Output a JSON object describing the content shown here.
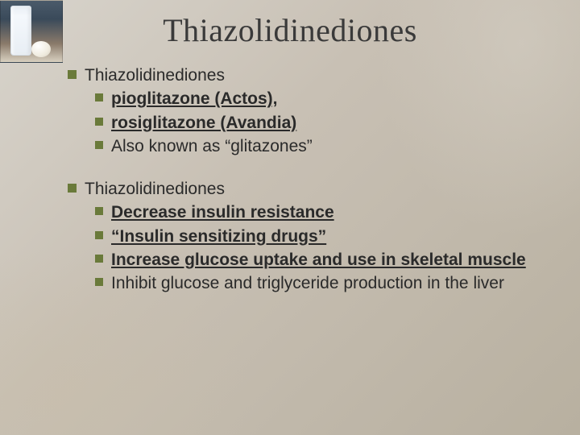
{
  "title": "Thiazolidinediones",
  "bullet_color": "#6a7a3a",
  "text_color": "#2a2a2a",
  "title_color": "#3a3a3a",
  "title_font_family": "Georgia",
  "body_font_family": "Verdana",
  "title_fontsize": 40,
  "body_fontsize": 21,
  "background_gradient": [
    "#d8d4cc",
    "#c8c0b4",
    "#b8b0a0"
  ],
  "blocks": [
    {
      "heading": "Thiazolidinediones",
      "items": [
        {
          "text": "pioglitazone (Actos),",
          "bold_underline": true
        },
        {
          "text": "rosiglitazone (Avandia)",
          "bold_underline": true
        },
        {
          "text": "Also known as “glitazones”",
          "bold_underline": false
        }
      ]
    },
    {
      "heading": "Thiazolidinediones",
      "items": [
        {
          "text": "Decrease insulin resistance",
          "bold_underline": true
        },
        {
          "text": "“Insulin sensitizing drugs”",
          "bold_underline": true
        },
        {
          "text": "Increase glucose uptake and use in skeletal muscle",
          "bold_underline": true
        },
        {
          "text": "Inhibit glucose and triglyceride production in the liver",
          "bold_underline": false
        }
      ]
    }
  ]
}
